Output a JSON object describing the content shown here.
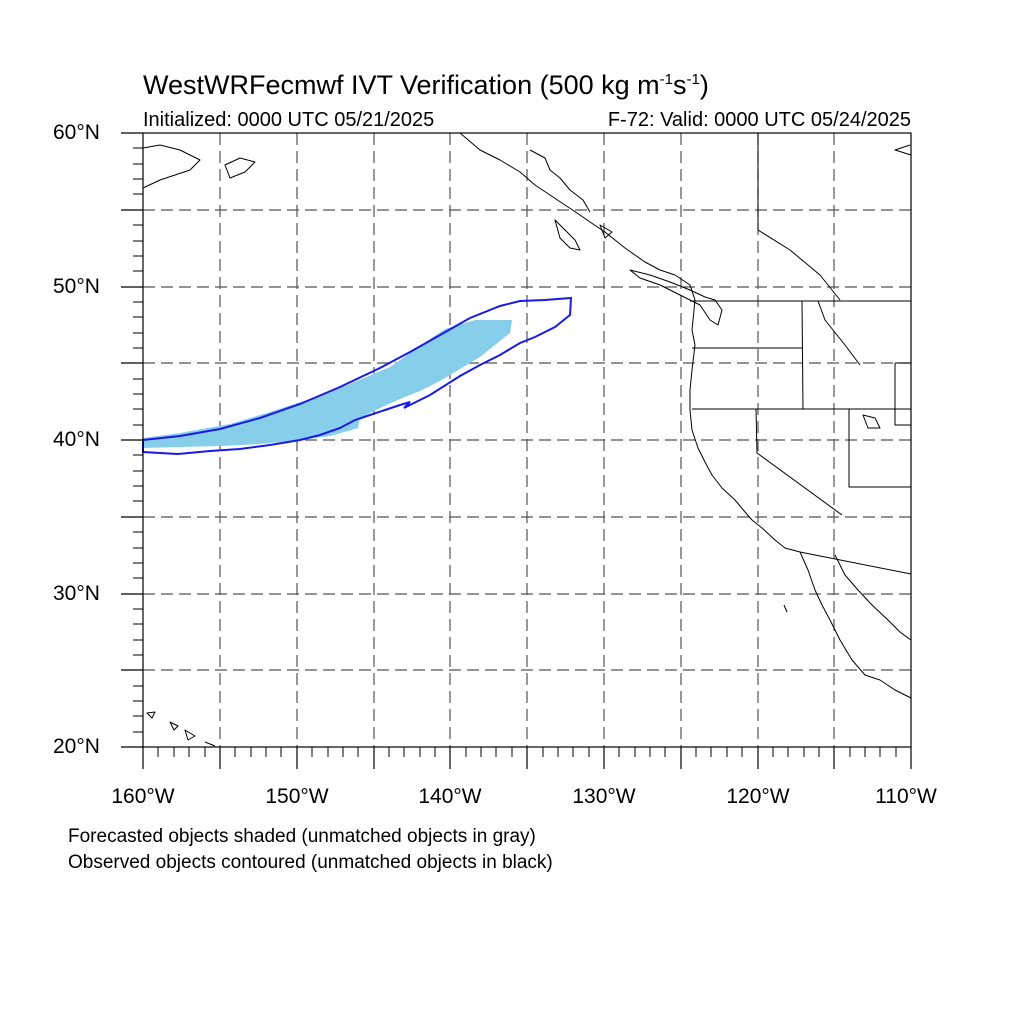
{
  "title": {
    "main": "WestWRFecmwf IVT Verification (500 kg m",
    "exp1": "-1",
    "mid": "s",
    "exp2": "-1",
    "end": ")"
  },
  "subtitle": {
    "left": "Initialized: 0000 UTC 05/21/2025",
    "right": "F-72: Valid: 0000 UTC 05/24/2025"
  },
  "axes": {
    "lat_labels": [
      "60°N",
      "50°N",
      "40°N",
      "30°N",
      "20°N"
    ],
    "lon_labels": [
      "160°W",
      "150°W",
      "140°W",
      "130°W",
      "120°W",
      "110°W"
    ],
    "lat_range": [
      20,
      60
    ],
    "lon_range": [
      -160,
      -110
    ],
    "gridlines": "dashed every 5 degrees"
  },
  "notes": {
    "line1": "Forecasted objects shaded (unmatched objects in gray)",
    "line2": "Observed objects contoured (unmatched objects in black)"
  },
  "colors": {
    "forecast_fill": "#87ceeb",
    "observed_contour": "#1a1ae6",
    "coastline": "#000000",
    "grid": "#555555"
  }
}
